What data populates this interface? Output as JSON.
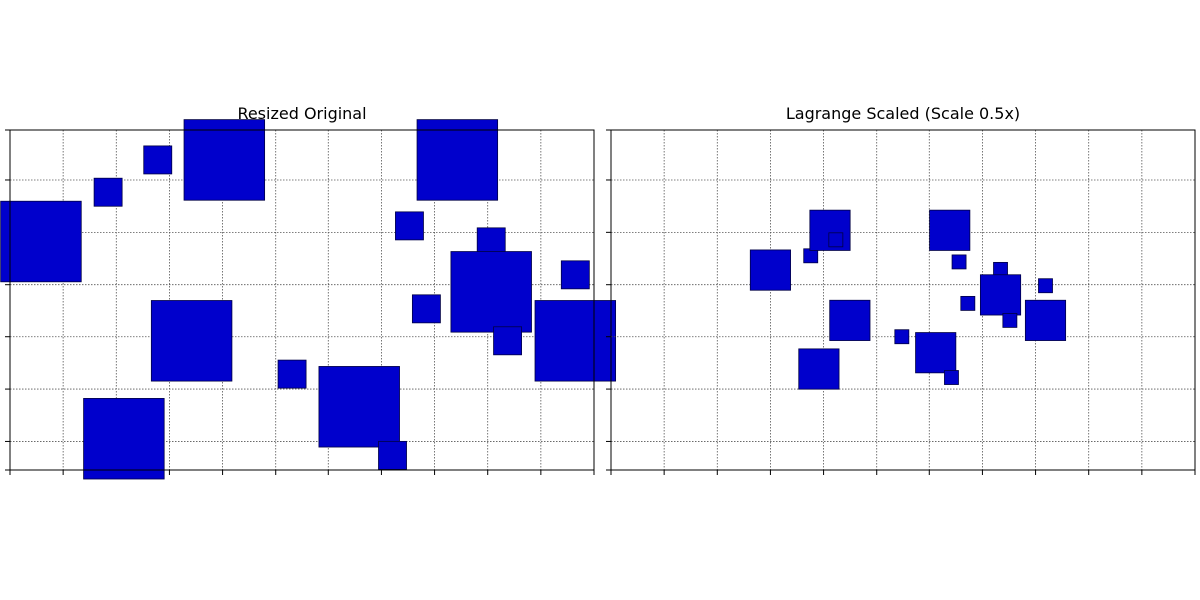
{
  "chart_data": [
    {
      "type": "scatter",
      "title": "Resized Original",
      "xlim": [
        0,
        1
      ],
      "ylim": [
        0,
        1
      ],
      "grid": true,
      "marker": "square",
      "x_ticks": [
        0,
        0.091,
        0.182,
        0.273,
        0.364,
        0.455,
        0.545,
        0.636,
        0.727,
        0.818,
        0.909,
        1.0
      ],
      "y_ticks": [
        0.0,
        0.084,
        0.238,
        0.392,
        0.545,
        0.699,
        0.853,
        1.0
      ],
      "points": [
        {
          "x": 0.253,
          "y": 0.912,
          "size": 0.048
        },
        {
          "x": 0.367,
          "y": 0.912,
          "size": 0.138
        },
        {
          "x": 0.168,
          "y": 0.817,
          "size": 0.048
        },
        {
          "x": 0.766,
          "y": 0.912,
          "size": 0.138
        },
        {
          "x": 0.053,
          "y": 0.672,
          "size": 0.138
        },
        {
          "x": 0.684,
          "y": 0.718,
          "size": 0.048
        },
        {
          "x": 0.824,
          "y": 0.671,
          "size": 0.048
        },
        {
          "x": 0.968,
          "y": 0.574,
          "size": 0.048
        },
        {
          "x": 0.824,
          "y": 0.524,
          "size": 0.138
        },
        {
          "x": 0.713,
          "y": 0.474,
          "size": 0.048
        },
        {
          "x": 0.311,
          "y": 0.38,
          "size": 0.138
        },
        {
          "x": 0.852,
          "y": 0.38,
          "size": 0.048
        },
        {
          "x": 0.968,
          "y": 0.38,
          "size": 0.138
        },
        {
          "x": 0.483,
          "y": 0.282,
          "size": 0.048
        },
        {
          "x": 0.598,
          "y": 0.186,
          "size": 0.138
        },
        {
          "x": 0.195,
          "y": 0.092,
          "size": 0.138
        },
        {
          "x": 0.655,
          "y": 0.043,
          "size": 0.048
        }
      ]
    },
    {
      "type": "scatter",
      "title": "Lagrange Scaled (Scale 0.5x)",
      "xlim": [
        0,
        1
      ],
      "ylim": [
        0,
        1
      ],
      "grid": true,
      "marker": "square",
      "x_ticks": [
        0,
        0.091,
        0.182,
        0.273,
        0.364,
        0.455,
        0.545,
        0.636,
        0.727,
        0.818,
        0.909,
        1.0
      ],
      "y_ticks": [
        0.0,
        0.084,
        0.238,
        0.392,
        0.545,
        0.699,
        0.853,
        1.0
      ],
      "points": [
        {
          "x": 0.342,
          "y": 0.63,
          "size": 0.024
        },
        {
          "x": 0.375,
          "y": 0.705,
          "size": 0.069
        },
        {
          "x": 0.385,
          "y": 0.677,
          "size": 0.024
        },
        {
          "x": 0.58,
          "y": 0.705,
          "size": 0.069
        },
        {
          "x": 0.273,
          "y": 0.588,
          "size": 0.069
        },
        {
          "x": 0.596,
          "y": 0.612,
          "size": 0.024
        },
        {
          "x": 0.667,
          "y": 0.59,
          "size": 0.024
        },
        {
          "x": 0.744,
          "y": 0.542,
          "size": 0.024
        },
        {
          "x": 0.667,
          "y": 0.515,
          "size": 0.069
        },
        {
          "x": 0.611,
          "y": 0.49,
          "size": 0.024
        },
        {
          "x": 0.409,
          "y": 0.44,
          "size": 0.069
        },
        {
          "x": 0.683,
          "y": 0.44,
          "size": 0.024
        },
        {
          "x": 0.744,
          "y": 0.44,
          "size": 0.069
        },
        {
          "x": 0.498,
          "y": 0.392,
          "size": 0.024
        },
        {
          "x": 0.556,
          "y": 0.345,
          "size": 0.069
        },
        {
          "x": 0.356,
          "y": 0.297,
          "size": 0.069
        },
        {
          "x": 0.583,
          "y": 0.272,
          "size": 0.024
        }
      ]
    }
  ],
  "style": {
    "marker_fill": "#0000cc",
    "marker_edge": "#000044",
    "grid_color": "#555555",
    "axis_color": "#000000"
  }
}
